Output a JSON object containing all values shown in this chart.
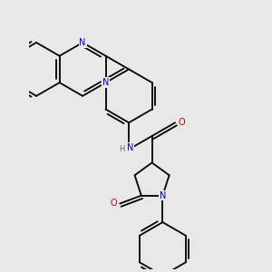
{
  "background_color": "#e8e8e8",
  "bond_color": "#000000",
  "atom_colors": {
    "N": "#0000cc",
    "O": "#cc0000",
    "C": "#000000",
    "H": "#507070"
  },
  "bond_width": 1.3,
  "font_size_atom": 7.0,
  "font_size_H": 6.0,
  "figsize": [
    3.0,
    3.0
  ],
  "dpi": 100
}
